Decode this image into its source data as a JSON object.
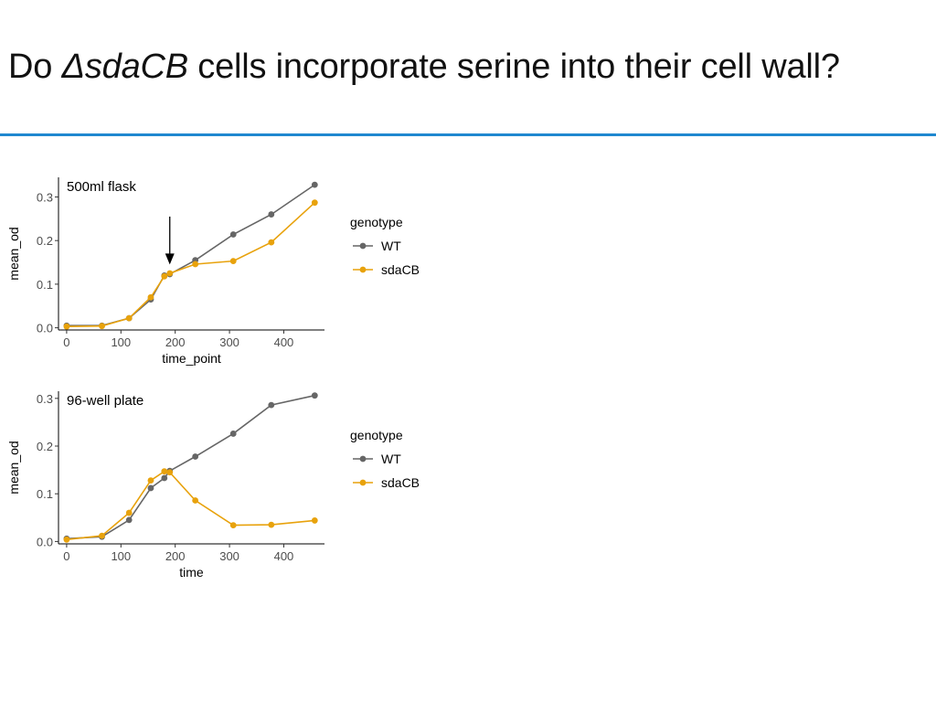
{
  "slide": {
    "title_prefix": "Do ",
    "title_italic": "ΔsdaCB",
    "title_suffix": " cells incorporate serine into their cell wall?",
    "rule_color": "#1f88d0"
  },
  "colors": {
    "WT": "#666666",
    "sdaCB": "#e8a20c"
  },
  "chart_data": [
    {
      "type": "line",
      "panel_label": "500ml flask",
      "xlabel": "time_point",
      "ylabel": "mean_od",
      "xlim": [
        -15,
        475
      ],
      "ylim": [
        -0.005,
        0.345
      ],
      "xticks": [
        0,
        100,
        200,
        300,
        400
      ],
      "yticks": [
        0.0,
        0.1,
        0.2,
        0.3
      ],
      "ytick_labels": [
        "0.0",
        "0.1",
        "0.2",
        "0.3"
      ],
      "legend_title": "genotype",
      "legend_position": "right",
      "annotation": {
        "type": "arrow",
        "x": 190,
        "y_from": 0.255,
        "y_to": 0.145
      },
      "series": [
        {
          "name": "WT",
          "x": [
            0,
            65,
            115,
            155,
            180,
            190,
            237,
            307,
            377,
            457
          ],
          "y": [
            0.005,
            0.005,
            0.022,
            0.065,
            0.12,
            0.123,
            0.155,
            0.214,
            0.26,
            0.328
          ]
        },
        {
          "name": "sdaCB",
          "x": [
            0,
            65,
            115,
            155,
            180,
            190,
            237,
            307,
            377,
            457
          ],
          "y": [
            0.003,
            0.004,
            0.022,
            0.07,
            0.118,
            0.125,
            0.146,
            0.153,
            0.196,
            0.287
          ]
        }
      ]
    },
    {
      "type": "line",
      "panel_label": "96-well plate",
      "xlabel": "time",
      "ylabel": "mean_od",
      "xlim": [
        -15,
        475
      ],
      "ylim": [
        -0.005,
        0.315
      ],
      "xticks": [
        0,
        100,
        200,
        300,
        400
      ],
      "yticks": [
        0.0,
        0.1,
        0.2,
        0.3
      ],
      "ytick_labels": [
        "0.0",
        "0.1",
        "0.2",
        "0.3"
      ],
      "legend_title": "genotype",
      "legend_position": "right",
      "series": [
        {
          "name": "WT",
          "x": [
            0,
            65,
            115,
            155,
            180,
            190,
            237,
            307,
            377,
            457
          ],
          "y": [
            0.006,
            0.01,
            0.045,
            0.112,
            0.133,
            0.148,
            0.178,
            0.226,
            0.286,
            0.306
          ]
        },
        {
          "name": "sdaCB",
          "x": [
            0,
            65,
            115,
            155,
            180,
            190,
            237,
            307,
            377,
            457
          ],
          "y": [
            0.004,
            0.012,
            0.06,
            0.128,
            0.147,
            0.145,
            0.086,
            0.034,
            0.035,
            0.044
          ]
        }
      ]
    }
  ]
}
